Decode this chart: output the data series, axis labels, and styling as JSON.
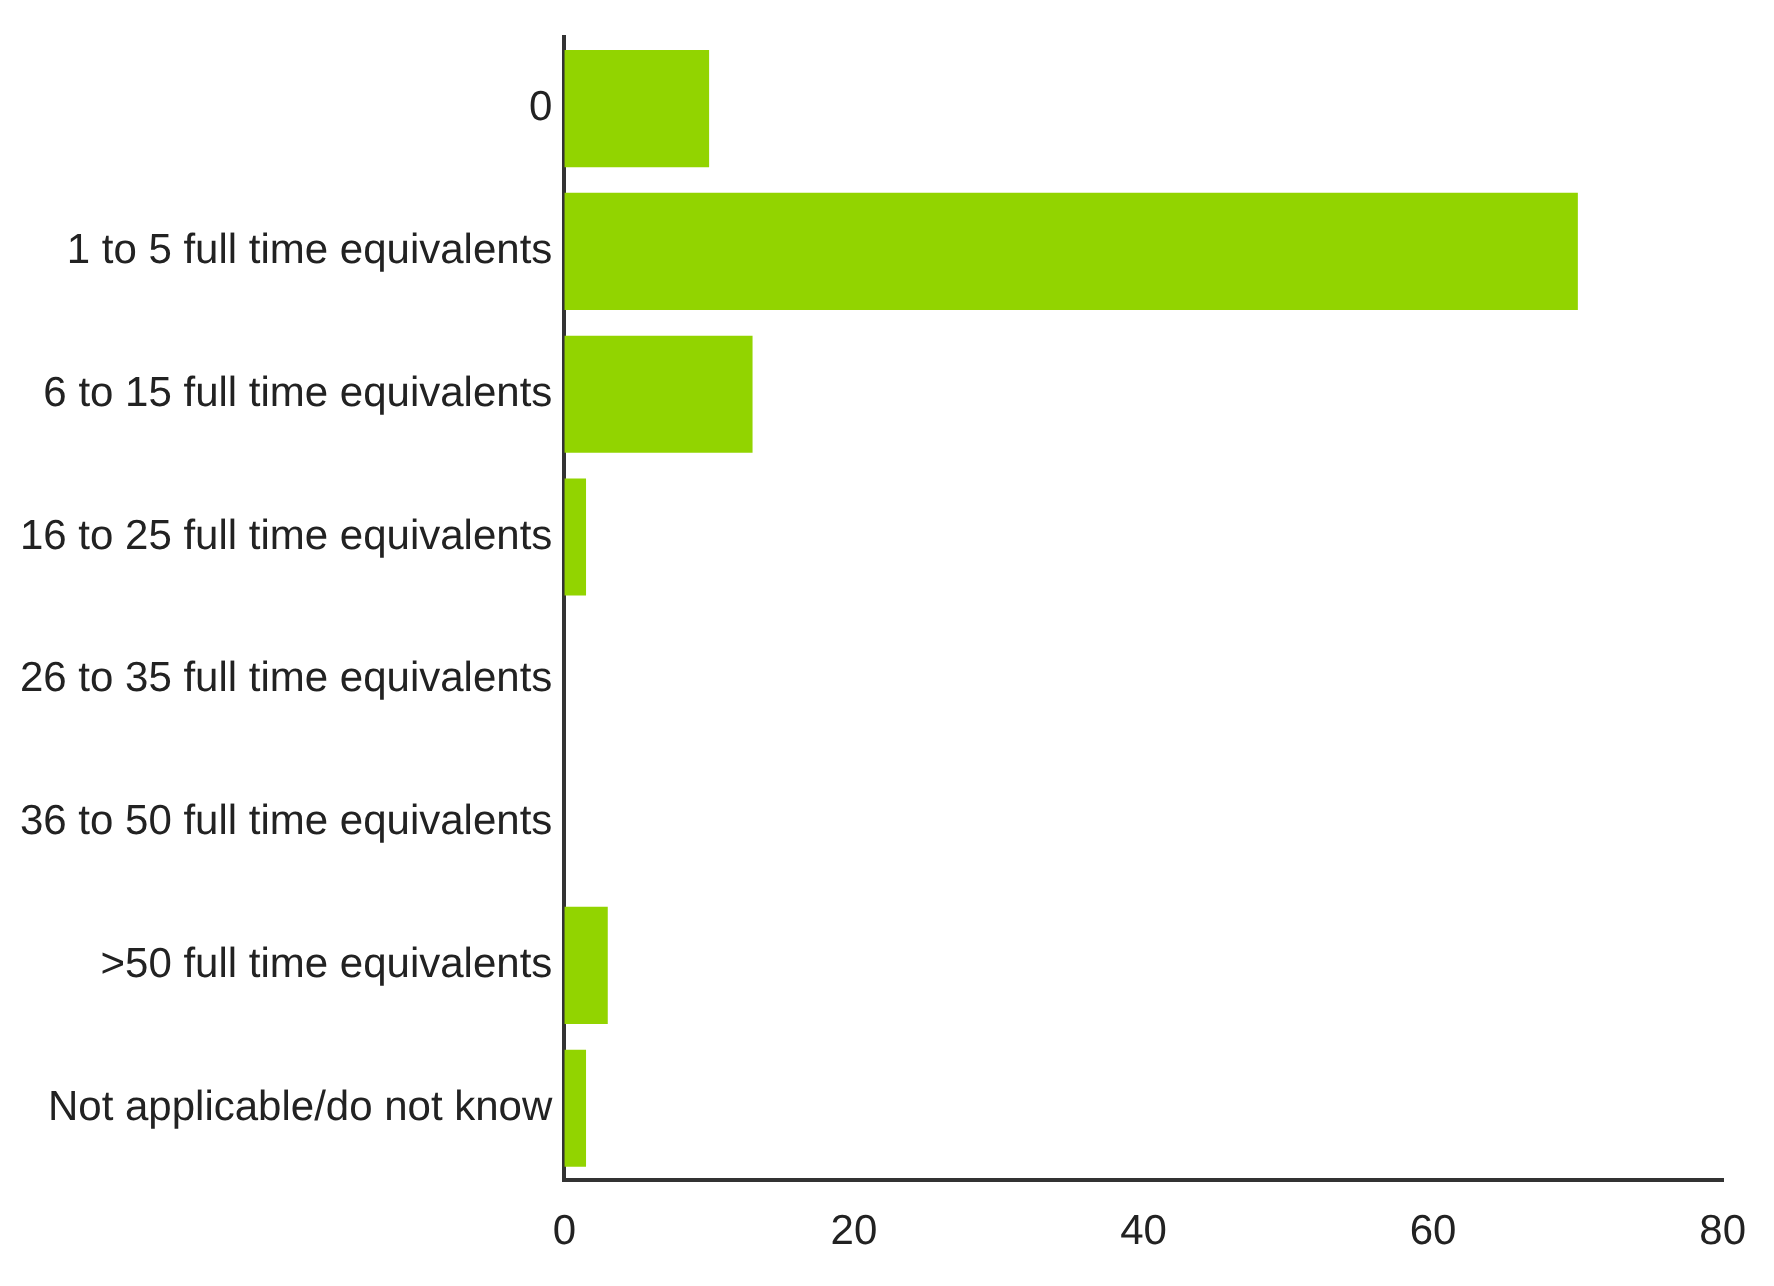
{
  "chart_data": {
    "type": "bar",
    "orientation": "horizontal",
    "categories": [
      "0",
      "1 to 5 full time equivalents",
      "6 to 15 full time equivalents",
      "16 to 25 full time equivalents",
      "26 to 35 full time equivalents",
      "36 to 50 full time equivalents",
      ">50 full time equivalents",
      "Not applicable/do not know"
    ],
    "values": [
      10,
      70,
      13,
      1.5,
      0,
      0,
      3,
      1.5
    ],
    "color": "#92d400",
    "xlim": [
      0,
      80
    ],
    "xticks": [
      0,
      20,
      40,
      60,
      80
    ],
    "grid": false,
    "legend": false
  }
}
